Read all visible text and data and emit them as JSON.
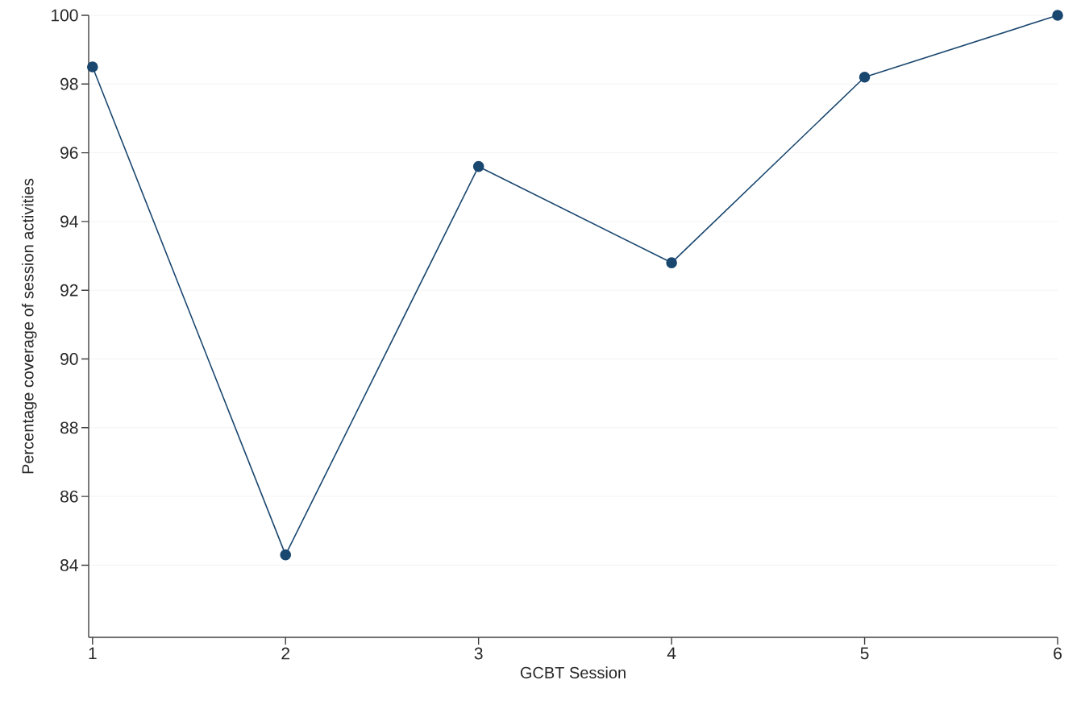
{
  "chart_data": {
    "type": "line",
    "xlabel": "GCBT Session",
    "ylabel": "Percentage coverage of session activities",
    "x": [
      1,
      2,
      3,
      4,
      5,
      6
    ],
    "series": [
      {
        "color": "#1a476f",
        "values": [
          98.5,
          84.3,
          95.6,
          92.8,
          98.2,
          100
        ]
      }
    ],
    "xlim": [
      0.98,
      6
    ],
    "xticks": [
      1,
      2,
      3,
      4,
      5,
      6
    ],
    "ylim": [
      81.9,
      100
    ],
    "yticks": [
      84,
      86,
      88,
      90,
      92,
      94,
      96,
      98,
      100
    ],
    "grid": "y",
    "marker": "circle",
    "line_style": "solid"
  }
}
